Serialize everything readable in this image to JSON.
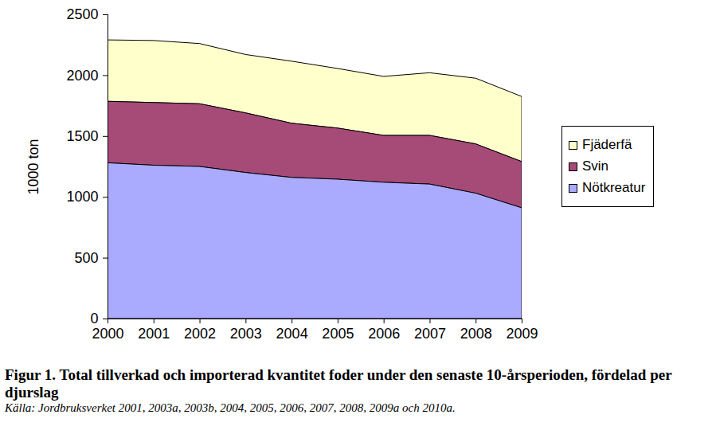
{
  "chart_data": {
    "type": "area",
    "stacked": true,
    "title": "Figur 1. Total tillverkad och importerad kvantitet foder under den senaste 10-årsperioden, fördelad per djurslag",
    "source": "Källa: Jordbruksverket 2001, 2003a, 2003b, 2004, 2005, 2006, 2007, 2008, 2009a och 2010a.",
    "y_label": "1000 ton",
    "x": [
      2000,
      2001,
      2002,
      2003,
      2004,
      2005,
      2006,
      2007,
      2008,
      2009
    ],
    "series": [
      {
        "name": "Fjäderfä",
        "color": "#ffffcc",
        "values": [
          505,
          510,
          495,
          480,
          510,
          490,
          485,
          515,
          540,
          535
        ]
      },
      {
        "name": "Svin",
        "color": "#a64a78",
        "values": [
          505,
          515,
          515,
          490,
          445,
          420,
          385,
          400,
          405,
          380
        ]
      },
      {
        "name": "Nötkreatur",
        "color": "#aaaaff",
        "values": [
          1280,
          1260,
          1250,
          1200,
          1160,
          1145,
          1120,
          1105,
          1030,
          910
        ]
      }
    ],
    "xlim": [
      2000,
      2009
    ],
    "xticks": [
      2000,
      2001,
      2002,
      2003,
      2004,
      2005,
      2006,
      2007,
      2008,
      2009
    ],
    "ylim": [
      0,
      2500
    ],
    "yticks": [
      0,
      500,
      1000,
      1500,
      2000,
      2500
    ],
    "grid": false,
    "legend": "right"
  }
}
